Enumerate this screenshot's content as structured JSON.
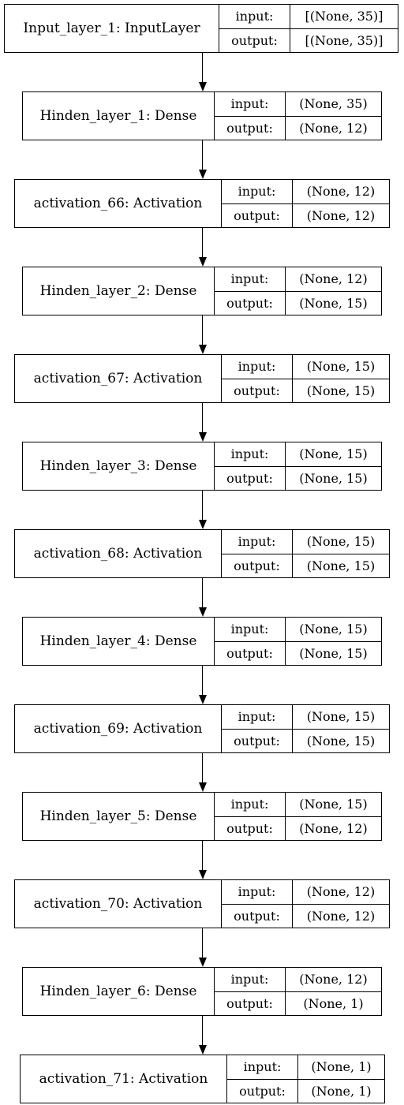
{
  "diagram": {
    "layers": [
      {
        "name": "Input_layer_1: InputLayer",
        "in_label": "input:",
        "in_shape": "[(None, 35)]",
        "out_label": "output:",
        "out_shape": "[(None, 35)]"
      },
      {
        "name": "Hinden_layer_1: Dense",
        "in_label": "input:",
        "in_shape": "(None, 35)",
        "out_label": "output:",
        "out_shape": "(None, 12)"
      },
      {
        "name": "activation_66: Activation",
        "in_label": "input:",
        "in_shape": "(None, 12)",
        "out_label": "output:",
        "out_shape": "(None, 12)"
      },
      {
        "name": "Hinden_layer_2: Dense",
        "in_label": "input:",
        "in_shape": "(None, 12)",
        "out_label": "output:",
        "out_shape": "(None, 15)"
      },
      {
        "name": "activation_67: Activation",
        "in_label": "input:",
        "in_shape": "(None, 15)",
        "out_label": "output:",
        "out_shape": "(None, 15)"
      },
      {
        "name": "Hinden_layer_3: Dense",
        "in_label": "input:",
        "in_shape": "(None, 15)",
        "out_label": "output:",
        "out_shape": "(None, 15)"
      },
      {
        "name": "activation_68: Activation",
        "in_label": "input:",
        "in_shape": "(None, 15)",
        "out_label": "output:",
        "out_shape": "(None, 15)"
      },
      {
        "name": "Hinden_layer_4: Dense",
        "in_label": "input:",
        "in_shape": "(None, 15)",
        "out_label": "output:",
        "out_shape": "(None, 15)"
      },
      {
        "name": "activation_69: Activation",
        "in_label": "input:",
        "in_shape": "(None, 15)",
        "out_label": "output:",
        "out_shape": "(None, 15)"
      },
      {
        "name": "Hinden_layer_5: Dense",
        "in_label": "input:",
        "in_shape": "(None, 15)",
        "out_label": "output:",
        "out_shape": "(None, 12)"
      },
      {
        "name": "activation_70: Activation",
        "in_label": "input:",
        "in_shape": "(None, 12)",
        "out_label": "output:",
        "out_shape": "(None, 12)"
      },
      {
        "name": "Hinden_layer_6: Dense",
        "in_label": "input:",
        "in_shape": "(None, 12)",
        "out_label": "output:",
        "out_shape": "(None, 1)"
      },
      {
        "name": "activation_71: Activation",
        "in_label": "input:",
        "in_shape": "(None, 1)",
        "out_label": "output:",
        "out_shape": "(None, 1)"
      }
    ]
  }
}
